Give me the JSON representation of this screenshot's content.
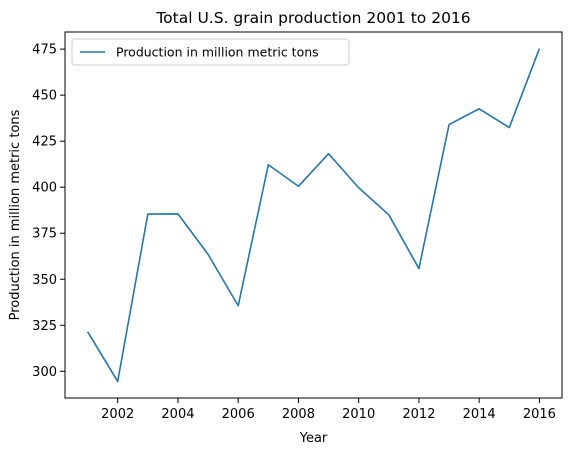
{
  "chart_data": {
    "type": "line",
    "title": "Total U.S. grain production 2001 to 2016",
    "xlabel": "Year",
    "ylabel": "Production in million metric tons",
    "x": [
      2001,
      2002,
      2003,
      2004,
      2005,
      2006,
      2007,
      2008,
      2009,
      2010,
      2011,
      2012,
      2013,
      2014,
      2015,
      2016
    ],
    "series": [
      {
        "name": "Production in million metric tons",
        "color": "#1f77b4",
        "values": [
          321.5,
          294.5,
          385.4,
          385.5,
          363.5,
          335.6,
          412.2,
          400.5,
          418.2,
          399.7,
          385.0,
          355.8,
          434.0,
          442.6,
          432.4,
          475.3
        ]
      }
    ],
    "xlim": [
      2000.25,
      2016.75
    ],
    "ylim": [
      285.5,
      484.3
    ],
    "xticks": [
      "2002",
      "2004",
      "2006",
      "2008",
      "2010",
      "2012",
      "2014",
      "2016"
    ],
    "yticks": [
      "300",
      "325",
      "350",
      "375",
      "400",
      "425",
      "450",
      "475"
    ],
    "grid": false,
    "legend_position": "top-left"
  }
}
